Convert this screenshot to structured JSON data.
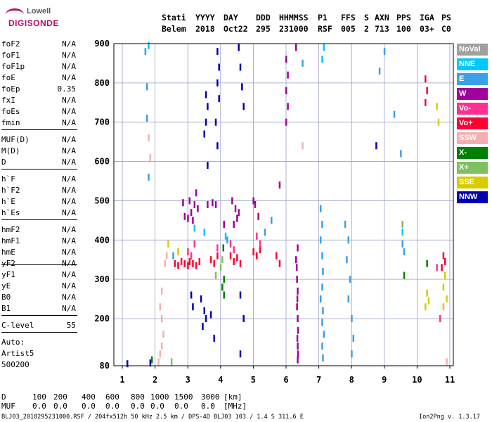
{
  "logo": {
    "top": "Lowell",
    "bottom": "DIGISONDE"
  },
  "header": {
    "cols": [
      {
        "key": "station",
        "label": "Stati",
        "value": "Belem"
      },
      {
        "key": "year",
        "label": "YYYY",
        "value": "2018"
      },
      {
        "key": "day",
        "label": "DAY",
        "value": "Oct22"
      },
      {
        "key": "ddd",
        "label": "DDD",
        "value": "295"
      },
      {
        "key": "hhmmss",
        "label": "HHMMSS",
        "value": "231000"
      },
      {
        "key": "p1",
        "label": "P1",
        "value": "RSF"
      },
      {
        "key": "ffs",
        "label": "FFS",
        "value": "005"
      },
      {
        "key": "s",
        "label": "S",
        "value": "2"
      },
      {
        "key": "axn",
        "label": "AXN",
        "value": "713"
      },
      {
        "key": "pps",
        "label": "PPS",
        "value": "100"
      },
      {
        "key": "iga",
        "label": "IGA",
        "value": "03+"
      },
      {
        "key": "ps",
        "label": "PS",
        "value": "C0"
      }
    ]
  },
  "parameters": [
    {
      "name": "foF2",
      "value": "N/A"
    },
    {
      "name": "foF1",
      "value": "N/A"
    },
    {
      "name": "foF1p",
      "value": "N/A"
    },
    {
      "name": "foE",
      "value": "N/A"
    },
    {
      "name": "foEp",
      "value": "0.35"
    },
    {
      "name": "fxI",
      "value": "N/A"
    },
    {
      "name": "foEs",
      "value": "N/A"
    },
    {
      "name": "fmin",
      "value": "N/A"
    },
    {
      "name": "MUF(D)",
      "value": "N/A"
    },
    {
      "name": "M(D)",
      "value": "N/A"
    },
    {
      "name": "D",
      "value": "N/A"
    },
    {
      "name": "h`F",
      "value": "N/A"
    },
    {
      "name": "h`F2",
      "value": "N/A"
    },
    {
      "name": "h`E",
      "value": "N/A"
    },
    {
      "name": "h`Es",
      "value": "N/A"
    },
    {
      "name": "hmF2",
      "value": "N/A"
    },
    {
      "name": "hmF1",
      "value": "N/A"
    },
    {
      "name": "hmE",
      "value": "N/A"
    },
    {
      "name": "yF2",
      "value": "N/A"
    },
    {
      "name": "yF1",
      "value": "N/A"
    },
    {
      "name": "yE",
      "value": "N/A"
    },
    {
      "name": "B0",
      "value": "N/A"
    },
    {
      "name": "B1",
      "value": "N/A"
    },
    {
      "name": "C-level",
      "value": "55"
    }
  ],
  "auto": {
    "line1": "Auto:",
    "line2": "Artist5",
    "line3": "500200"
  },
  "legend": [
    {
      "label": "NoVal",
      "color": "#a0a0a0"
    },
    {
      "label": "NNE",
      "color": "#00c8ff"
    },
    {
      "label": "E",
      "color": "#3aa0e8"
    },
    {
      "label": "W",
      "color": "#a0009c"
    },
    {
      "label": "Vo-",
      "color": "#ff3090"
    },
    {
      "label": "Vo+",
      "color": "#ff0030"
    },
    {
      "label": "SSW",
      "color": "#f4b0b0"
    },
    {
      "label": "X-",
      "color": "#008000"
    },
    {
      "label": "X+",
      "color": "#80c060"
    },
    {
      "label": "SSE",
      "color": "#d8cc00"
    },
    {
      "label": "NNW",
      "color": "#0000b0"
    }
  ],
  "bottom": {
    "d_label": "D",
    "d_values": [
      "100",
      "200",
      "400",
      "600",
      "800",
      "1000",
      "1500",
      "3000",
      "[km]"
    ],
    "muf_label": "MUF",
    "muf_values": [
      "0.0",
      "0.0",
      "0.0",
      "0.0",
      "0.0",
      "0.0",
      "0.0",
      "0.0",
      "[MHz]"
    ]
  },
  "footer": {
    "left": "BLJ03_2018295231000.RSF / 204fx512h 50 kHz 2.5 km / DPS-4D BLJ03 103 / 1.4 S 311.6 E",
    "right": "Ion2Png v. 1.3.17"
  },
  "chart_data": {
    "type": "scatter",
    "x_ticks": [
      1,
      2,
      3,
      4,
      5,
      6,
      7,
      8,
      9,
      10,
      11
    ],
    "y_ticks": [
      80,
      200,
      300,
      400,
      500,
      600,
      700,
      800,
      900
    ],
    "xlim": [
      0.75,
      11
    ],
    "ylim": [
      80,
      900
    ],
    "grid": true,
    "legend_position": "right",
    "series": [
      {
        "name": "W",
        "points": [
          [
            3.05,
            500
          ],
          [
            3.1,
            470
          ],
          [
            3.15,
            450
          ],
          [
            3.2,
            490
          ],
          [
            3.25,
            520
          ],
          [
            3.3,
            480
          ],
          [
            3.0,
            455
          ],
          [
            2.9,
            460
          ],
          [
            2.85,
            495
          ],
          [
            3.6,
            490
          ],
          [
            3.75,
            495
          ],
          [
            3.85,
            490
          ],
          [
            4.35,
            500
          ],
          [
            4.45,
            480
          ],
          [
            4.5,
            455
          ],
          [
            4.4,
            440
          ],
          [
            4.55,
            470
          ],
          [
            5.0,
            500
          ],
          [
            5.05,
            490
          ],
          [
            5.15,
            460
          ],
          [
            6.0,
            860
          ],
          [
            6.05,
            820
          ],
          [
            6.0,
            780
          ],
          [
            6.05,
            740
          ],
          [
            6.0,
            700
          ],
          [
            6.3,
            890
          ],
          [
            6.35,
            380
          ],
          [
            6.3,
            350
          ],
          [
            6.32,
            330
          ],
          [
            6.33,
            300
          ],
          [
            6.35,
            270
          ],
          [
            6.34,
            250
          ],
          [
            6.33,
            230
          ],
          [
            6.35,
            200
          ],
          [
            6.36,
            170
          ],
          [
            6.34,
            150
          ],
          [
            6.35,
            130
          ],
          [
            6.36,
            110
          ],
          [
            6.35,
            95
          ],
          [
            5.8,
            540
          ],
          [
            4.1,
            440
          ]
        ]
      },
      {
        "name": "NNW",
        "points": [
          [
            3.55,
            770
          ],
          [
            3.6,
            740
          ],
          [
            3.55,
            700
          ],
          [
            3.5,
            670
          ],
          [
            3.6,
            590
          ],
          [
            3.5,
            220
          ],
          [
            3.55,
            200
          ],
          [
            3.9,
            880
          ],
          [
            3.95,
            840
          ],
          [
            3.9,
            800
          ],
          [
            3.95,
            760
          ],
          [
            3.85,
            700
          ],
          [
            3.9,
            640
          ],
          [
            4.55,
            890
          ],
          [
            4.6,
            840
          ],
          [
            4.65,
            790
          ],
          [
            4.7,
            740
          ],
          [
            3.4,
            250
          ],
          [
            3.45,
            180
          ],
          [
            3.7,
            210
          ],
          [
            3.8,
            150
          ],
          [
            4.6,
            260
          ],
          [
            4.7,
            200
          ],
          [
            4.6,
            110
          ],
          [
            8.75,
            640
          ],
          [
            1.15,
            85
          ],
          [
            1.85,
            87
          ],
          [
            3.1,
            260
          ],
          [
            3.15,
            230
          ]
        ]
      },
      {
        "name": "Vo+",
        "points": [
          [
            2.6,
            340
          ],
          [
            2.7,
            335
          ],
          [
            2.8,
            345
          ],
          [
            2.9,
            340
          ],
          [
            3.0,
            335
          ],
          [
            3.05,
            345
          ],
          [
            3.15,
            340
          ],
          [
            3.25,
            335
          ],
          [
            3.35,
            345
          ],
          [
            3.7,
            350
          ],
          [
            3.8,
            340
          ],
          [
            3.9,
            360
          ],
          [
            4.3,
            360
          ],
          [
            4.4,
            345
          ],
          [
            4.5,
            355
          ],
          [
            4.6,
            340
          ],
          [
            5.0,
            370
          ],
          [
            5.1,
            360
          ],
          [
            5.2,
            375
          ],
          [
            10.25,
            810
          ],
          [
            10.3,
            780
          ],
          [
            10.25,
            750
          ],
          [
            10.8,
            360
          ],
          [
            10.85,
            345
          ],
          [
            10.75,
            330
          ],
          [
            5.7,
            360
          ],
          [
            5.8,
            340
          ]
        ]
      },
      {
        "name": "E",
        "points": [
          [
            7.05,
            480
          ],
          [
            7.1,
            440
          ],
          [
            7.05,
            400
          ],
          [
            7.1,
            360
          ],
          [
            7.12,
            320
          ],
          [
            7.1,
            280
          ],
          [
            7.05,
            250
          ],
          [
            7.12,
            220
          ],
          [
            7.1,
            190
          ],
          [
            7.15,
            160
          ],
          [
            7.1,
            130
          ],
          [
            7.12,
            100
          ],
          [
            7.8,
            440
          ],
          [
            7.9,
            400
          ],
          [
            7.85,
            350
          ],
          [
            7.95,
            300
          ],
          [
            7.9,
            250
          ],
          [
            8.0,
            200
          ],
          [
            8.05,
            150
          ],
          [
            8.0,
            110
          ],
          [
            9.0,
            880
          ],
          [
            8.85,
            830
          ],
          [
            9.3,
            720
          ],
          [
            9.5,
            620
          ],
          [
            9.55,
            390
          ],
          [
            9.6,
            370
          ],
          [
            6.5,
            850
          ],
          [
            5.55,
            450
          ],
          [
            1.7,
            880
          ],
          [
            1.75,
            790
          ],
          [
            1.75,
            710
          ],
          [
            1.8,
            560
          ],
          [
            2.55,
            360
          ],
          [
            4.2,
            400
          ],
          [
            5.35,
            420
          ]
        ]
      },
      {
        "name": "NNE",
        "points": [
          [
            1.8,
            895
          ],
          [
            7.15,
            890
          ],
          [
            7.1,
            860
          ],
          [
            3.2,
            430
          ],
          [
            3.5,
            420
          ],
          [
            4.15,
            410
          ],
          [
            9.55,
            420
          ]
        ]
      },
      {
        "name": "X-",
        "points": [
          [
            4.1,
            300
          ],
          [
            4.05,
            280
          ],
          [
            4.1,
            260
          ],
          [
            4.08,
            380
          ],
          [
            9.6,
            310
          ],
          [
            1.9,
            95
          ],
          [
            10.3,
            340
          ]
        ]
      },
      {
        "name": "X+",
        "points": [
          [
            4.0,
            330
          ],
          [
            4.05,
            350
          ],
          [
            3.85,
            310
          ],
          [
            9.55,
            440
          ],
          [
            2.5,
            90
          ]
        ]
      },
      {
        "name": "SSW",
        "points": [
          [
            2.2,
            270
          ],
          [
            2.15,
            230
          ],
          [
            2.2,
            200
          ],
          [
            2.25,
            160
          ],
          [
            2.2,
            130
          ],
          [
            2.15,
            110
          ],
          [
            2.1,
            90
          ],
          [
            2.3,
            340
          ],
          [
            1.8,
            660
          ],
          [
            1.85,
            610
          ],
          [
            2.35,
            360
          ],
          [
            6.5,
            640
          ],
          [
            10.9,
            90
          ]
        ]
      },
      {
        "name": "Vo-",
        "points": [
          [
            3.0,
            370
          ],
          [
            3.1,
            360
          ],
          [
            3.2,
            390
          ],
          [
            3.9,
            380
          ],
          [
            4.3,
            390
          ],
          [
            4.4,
            375
          ],
          [
            5.2,
            390
          ],
          [
            5.1,
            410
          ],
          [
            10.6,
            330
          ],
          [
            10.7,
            200
          ]
        ]
      },
      {
        "name": "SSE",
        "points": [
          [
            10.3,
            265
          ],
          [
            10.35,
            245
          ],
          [
            10.25,
            230
          ],
          [
            10.6,
            740
          ],
          [
            10.65,
            700
          ],
          [
            10.85,
            310
          ],
          [
            10.8,
            280
          ],
          [
            10.9,
            250
          ],
          [
            10.8,
            230
          ],
          [
            2.4,
            390
          ],
          [
            2.7,
            370
          ]
        ]
      }
    ]
  }
}
